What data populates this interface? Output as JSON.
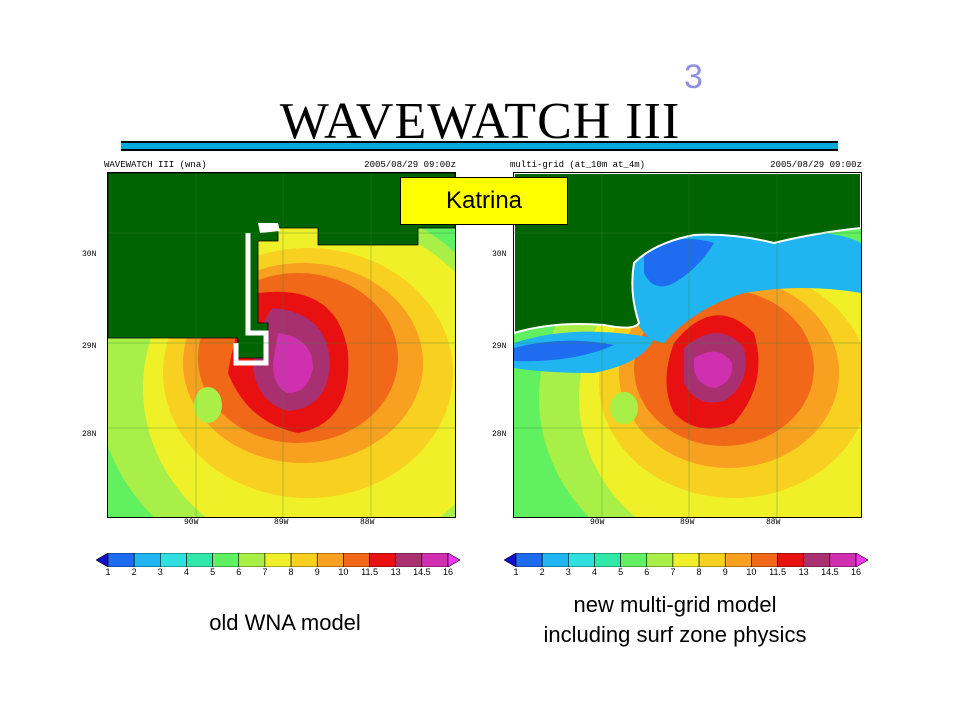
{
  "slide": {
    "title": "WAVEWATCH III",
    "title_superscript": "3"
  },
  "left_panel": {
    "header_left": "WAVEWATCH III (wna)",
    "header_right": "2005/08/29 09:00z",
    "lat_labels": [
      "30N",
      "29N",
      "28N"
    ],
    "lon_labels": [
      "90W",
      "89W",
      "88W"
    ],
    "caption": "old WNA model"
  },
  "right_panel": {
    "header_left": "multi-grid (at_10m at_4m)",
    "header_right": "2005/08/29 09:00z",
    "lat_labels": [
      "30N",
      "29N",
      "28N"
    ],
    "lon_labels": [
      "90W",
      "89W",
      "88W"
    ],
    "caption_line1": "new multi-grid model",
    "caption_line2": "including surf zone physics"
  },
  "callout": {
    "label": "Katrina",
    "color": "#ffff00"
  },
  "colorbar": {
    "levels": [
      "1",
      "2",
      "3",
      "4",
      "5",
      "6",
      "7",
      "8",
      "9",
      "10",
      "11.5",
      "13",
      "14.5",
      "16"
    ],
    "colors": [
      "#1010c8",
      "#1e6cf0",
      "#20b4f0",
      "#30e0e0",
      "#30e8a8",
      "#60f060",
      "#a8f048",
      "#f0f028",
      "#f8d020",
      "#f8a020",
      "#f06818",
      "#e81010",
      "#a83070",
      "#d030b0",
      "#f038f0"
    ]
  },
  "colors": {
    "land": "#006400",
    "title_rule": "#00a9d9"
  }
}
